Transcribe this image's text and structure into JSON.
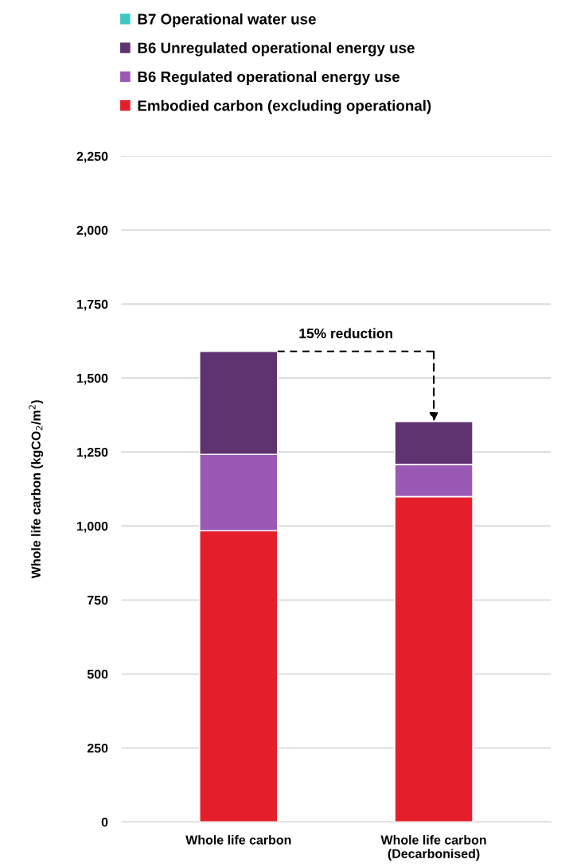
{
  "chart_data": {
    "type": "bar",
    "stacked": true,
    "ylabel": "Whole life carbon (kgCO$_{2}$/m$^{2}$)",
    "categories": [
      "Whole life carbon",
      "Whole life carbon\n(Decarbonised)"
    ],
    "series": [
      {
        "name": "Embodied carbon (excluding operational)",
        "color": "#e41f2b",
        "values": [
          984,
          1099
        ]
      },
      {
        "name": "B6 Regulated operational energy use",
        "color": "#9b59b6",
        "values": [
          258,
          109
        ]
      },
      {
        "name": "B6 Unregulated operational energy use",
        "color": "#5e336f",
        "values": [
          348,
          145
        ]
      },
      {
        "name": "B7 Operational water use",
        "color": "#3fc6c0",
        "values": [
          null,
          null
        ]
      }
    ],
    "ylim": [
      0,
      2250
    ],
    "yticks": [
      {
        "value": 0,
        "label": "0"
      },
      {
        "value": 250,
        "label": "250"
      },
      {
        "value": 500,
        "label": "500"
      },
      {
        "value": 750,
        "label": "750"
      },
      {
        "value": 1000,
        "label": "1,000"
      },
      {
        "value": 1250,
        "label": "1,250"
      },
      {
        "value": 1500,
        "label": "1,500"
      },
      {
        "value": 1750,
        "label": "1,750"
      },
      {
        "value": 2000,
        "label": "2,000"
      },
      {
        "value": 2250,
        "label": "2,250"
      }
    ],
    "grid": "y",
    "legend": "top",
    "annotations": [
      "15% reduction"
    ]
  }
}
